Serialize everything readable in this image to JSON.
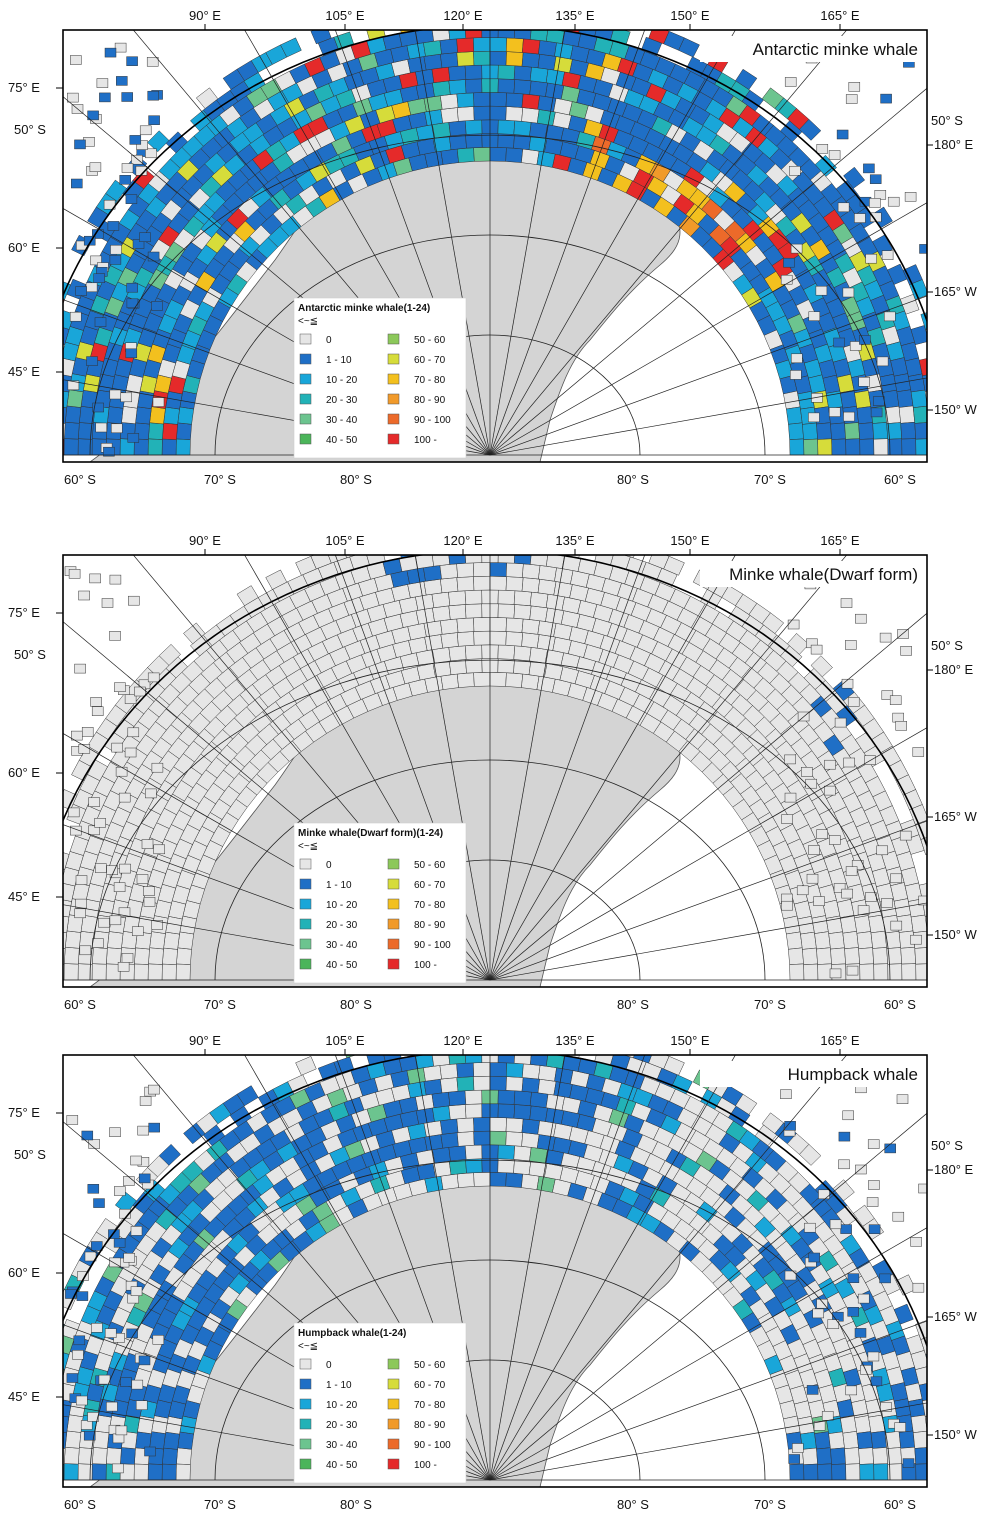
{
  "legend_bins": [
    "0",
    "1 - 10",
    "10 - 20",
    "20 - 30",
    "30 - 40",
    "40 - 50",
    "50 - 60",
    "60 - 70",
    "70 - 80",
    "80 - 90",
    "90 - 100",
    "100 -"
  ],
  "legend_colors": [
    "#e6e6e6",
    "#1f6fc6",
    "#19a6d9",
    "#22b2b7",
    "#6cc48f",
    "#4bb55a",
    "#8cc85a",
    "#d6dc3a",
    "#f3c01e",
    "#f19a2a",
    "#ec6a2a",
    "#e52a2a"
  ],
  "legend_unit": "<~≦",
  "labels": {
    "top_lon": [
      "90° E",
      "105° E",
      "120° E",
      "135° E",
      "150° E",
      "165° E"
    ],
    "left_lon": [
      "75° E",
      "60° E",
      "45° E"
    ],
    "left_lat": "50° S",
    "right_lat": "50° S",
    "right_lon": [
      "180° E",
      "165° W",
      "150° W"
    ],
    "bottom_lat": [
      "60° S",
      "70° S",
      "80° S",
      "80° S",
      "70° S",
      "60° S"
    ]
  },
  "panels": [
    {
      "title": "Antarctic minke whale",
      "legend_title": "Antarctic minke whale(1-24)",
      "intensity": "high"
    },
    {
      "title": "Minke whale(Dwarf form)",
      "legend_title": "Minke whale(Dwarf form)(1-24)",
      "intensity": "sparse"
    },
    {
      "title": "Humpback whale",
      "legend_title": "Humpback whale(1-24)",
      "intensity": "medium"
    }
  ]
}
